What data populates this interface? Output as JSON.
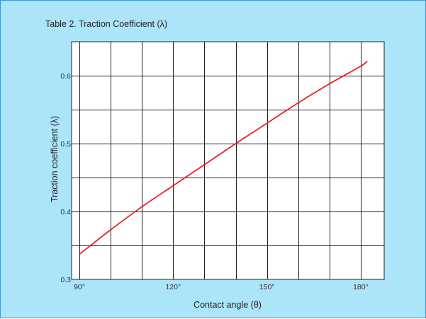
{
  "chart_data": {
    "type": "line",
    "title": "Table 2. Traction Coefficient (λ)",
    "xlabel": "Contact angle (θ)",
    "ylabel": "Traction coefficient (λ)",
    "xlim": [
      87.5,
      187.5
    ],
    "ylim": [
      0.3,
      0.65
    ],
    "x_ticks": [
      {
        "value": 90,
        "label": "90°"
      },
      {
        "value": 120,
        "label": "120°"
      },
      {
        "value": 150,
        "label": "150°"
      },
      {
        "value": 180,
        "label": "180°"
      }
    ],
    "y_ticks": [
      {
        "value": 0.3,
        "label": "0.3"
      },
      {
        "value": 0.4,
        "label": "0.4"
      },
      {
        "value": 0.5,
        "label": "0.5"
      },
      {
        "value": 0.6,
        "label": "0.6"
      }
    ],
    "x_gridlines": [
      90,
      100,
      110,
      120,
      130,
      140,
      150,
      160,
      170,
      180
    ],
    "y_gridlines": [
      0.35,
      0.4,
      0.45,
      0.5,
      0.55,
      0.6
    ],
    "grid": true,
    "legend": "none",
    "series": [
      {
        "color": "#e8202a",
        "x": [
          90,
          100,
          110,
          120,
          130,
          140,
          150,
          160,
          170,
          180,
          182
        ],
        "y": [
          0.337,
          0.373,
          0.407,
          0.438,
          0.469,
          0.5,
          0.53,
          0.56,
          0.588,
          0.614,
          0.621
        ]
      }
    ]
  },
  "colors": {
    "background": "#ace4fa",
    "plot_area": "#ffffff",
    "grid": "#222222",
    "frame": "#3a9bd8"
  }
}
